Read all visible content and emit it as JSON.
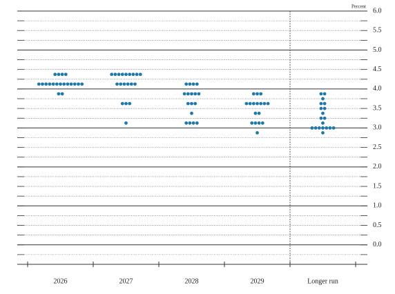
{
  "chart_data": {
    "type": "dot_plot",
    "y_axis_label": "Percent",
    "color": "#1f78a8",
    "ylim": [
      -0.5,
      6.0
    ],
    "yticks": [
      {
        "value": 0,
        "label": "0.0"
      },
      0.5,
      {
        "value": 1,
        "label": "1.0"
      },
      1.5,
      {
        "value": 2,
        "label": "2.0"
      },
      2.5,
      {
        "value": 3,
        "label": "3.0"
      },
      3.5,
      {
        "value": 4,
        "label": "4.0"
      },
      4.5,
      {
        "value": 5,
        "label": "5.0"
      },
      5.5,
      {
        "value": 6,
        "label": "6.0"
      }
    ],
    "minor_yticks": [
      -0.25,
      0.25,
      0.75,
      1.25,
      1.75,
      2.25,
      2.75,
      3.25,
      3.75,
      4.25,
      4.75,
      5.25,
      5.75
    ],
    "columns": [
      {
        "label": "2026",
        "dots": [
          {
            "value": 4.375,
            "count": 4
          },
          {
            "value": 4.125,
            "count": 13
          },
          {
            "value": 3.875,
            "count": 2
          }
        ]
      },
      {
        "label": "2027",
        "dots": [
          {
            "value": 4.375,
            "count": 9
          },
          {
            "value": 4.125,
            "count": 6
          },
          {
            "value": 3.625,
            "count": 3
          },
          {
            "value": 3.125,
            "count": 1
          }
        ]
      },
      {
        "label": "2028",
        "dots": [
          {
            "value": 4.125,
            "count": 4
          },
          {
            "value": 3.875,
            "count": 5
          },
          {
            "value": 3.625,
            "count": 3
          },
          {
            "value": 3.375,
            "count": 1
          },
          {
            "value": 3.125,
            "count": 4
          }
        ]
      },
      {
        "label": "2029",
        "dots": [
          {
            "value": 3.875,
            "count": 3
          },
          {
            "value": 3.625,
            "count": 7
          },
          {
            "value": 3.375,
            "count": 2
          },
          {
            "value": 3.125,
            "count": 4
          },
          {
            "value": 2.875,
            "count": 1
          }
        ]
      },
      {
        "label": "Longer run",
        "dots": [
          {
            "value": 3.875,
            "count": 2
          },
          {
            "value": 3.75,
            "count": 1
          },
          {
            "value": 3.625,
            "count": 2
          },
          {
            "value": 3.5,
            "count": 2
          },
          {
            "value": 3.375,
            "count": 1
          },
          {
            "value": 3.25,
            "count": 2
          },
          {
            "value": 3.125,
            "count": 1
          },
          {
            "value": 3.0,
            "count": 7
          },
          {
            "value": 2.875,
            "count": 1
          }
        ]
      }
    ]
  }
}
